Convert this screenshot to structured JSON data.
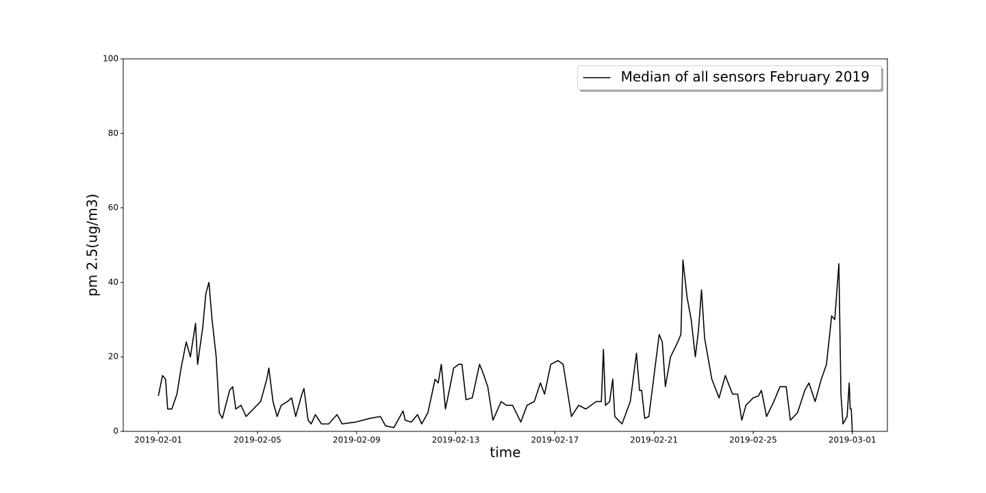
{
  "chart_data": {
    "type": "line",
    "x_label": "time",
    "y_label": "pm 2.5(ug/m3)",
    "legend": "upper right",
    "x": [
      "2019-02-01 00:00",
      "2019-02-01 04:00",
      "2019-02-01 07:00",
      "2019-02-01 09:00",
      "2019-02-01 13:00",
      "2019-02-01 18:00",
      "2019-02-01 22:00",
      "2019-02-02 03:00",
      "2019-02-02 07:00",
      "2019-02-02 12:00",
      "2019-02-02 14:00",
      "2019-02-02 19:00",
      "2019-02-02 22:00",
      "2019-02-03 01:00",
      "2019-02-03 04:00",
      "2019-02-03 08:00",
      "2019-02-03 11:00",
      "2019-02-03 14:00",
      "2019-02-03 21:00",
      "2019-02-04 00:00",
      "2019-02-04 03:00",
      "2019-02-04 08:00",
      "2019-02-04 13:00",
      "2019-02-04 20:00",
      "2019-02-05 03:00",
      "2019-02-05 09:00",
      "2019-02-05 11:00",
      "2019-02-05 15:00",
      "2019-02-05 19:00",
      "2019-02-05 23:00",
      "2019-02-06 05:00",
      "2019-02-06 09:00",
      "2019-02-06 13:00",
      "2019-02-06 19:00",
      "2019-02-06 21:00",
      "2019-02-07 01:00",
      "2019-02-07 04:00",
      "2019-02-07 08:00",
      "2019-02-07 14:00",
      "2019-02-07 21:00",
      "2019-02-08 05:00",
      "2019-02-08 10:00",
      "2019-02-08 23:00",
      "2019-02-09 13:00",
      "2019-02-09 23:00",
      "2019-02-10 04:00",
      "2019-02-10 12:00",
      "2019-02-10 21:00",
      "2019-02-10 23:00",
      "2019-02-11 05:00",
      "2019-02-11 11:00",
      "2019-02-11 15:00",
      "2019-02-11 21:00",
      "2019-02-12 04:00",
      "2019-02-12 07:00",
      "2019-02-12 10:00",
      "2019-02-12 14:00",
      "2019-02-12 17:00",
      "2019-02-12 22:00",
      "2019-02-13 03:00",
      "2019-02-13 06:00",
      "2019-02-13 10:00",
      "2019-02-13 16:00",
      "2019-02-13 23:00",
      "2019-02-14 02:00",
      "2019-02-14 07:00",
      "2019-02-14 12:00",
      "2019-02-14 20:00",
      "2019-02-15 01:00",
      "2019-02-15 07:00",
      "2019-02-15 15:00",
      "2019-02-15 21:00",
      "2019-02-16 04:00",
      "2019-02-16 10:00",
      "2019-02-16 14:00",
      "2019-02-16 20:00",
      "2019-02-17 03:00",
      "2019-02-17 08:00",
      "2019-02-17 16:00",
      "2019-02-17 23:00",
      "2019-02-18 06:00",
      "2019-02-18 16:00",
      "2019-02-18 21:00",
      "2019-02-18 23:00",
      "2019-02-19 01:00",
      "2019-02-19 05:00",
      "2019-02-19 08:00",
      "2019-02-19 10:00",
      "2019-02-19 17:00",
      "2019-02-20 01:00",
      "2019-02-20 07:00",
      "2019-02-20 10:00",
      "2019-02-20 12:00",
      "2019-02-20 15:00",
      "2019-02-20 19:00",
      "2019-02-21 00:00",
      "2019-02-21 05:00",
      "2019-02-21 08:00",
      "2019-02-21 11:00",
      "2019-02-21 16:00",
      "2019-02-21 23:00",
      "2019-02-22 02:00",
      "2019-02-22 04:00",
      "2019-02-22 08:00",
      "2019-02-22 12:00",
      "2019-02-22 16:00",
      "2019-02-22 19:00",
      "2019-02-22 22:00",
      "2019-02-23 01:00",
      "2019-02-23 08:00",
      "2019-02-23 15:00",
      "2019-02-23 21:00",
      "2019-02-24 04:00",
      "2019-02-24 09:00",
      "2019-02-24 13:00",
      "2019-02-24 17:00",
      "2019-02-25 00:00",
      "2019-02-25 05:00",
      "2019-02-25 08:00",
      "2019-02-25 13:00",
      "2019-02-25 20:00",
      "2019-02-26 02:00",
      "2019-02-26 08:00",
      "2019-02-26 12:00",
      "2019-02-26 19:00",
      "2019-02-27 02:00",
      "2019-02-27 06:00",
      "2019-02-27 12:00",
      "2019-02-27 18:00",
      "2019-02-27 23:00",
      "2019-02-28 04:00",
      "2019-02-28 07:00",
      "2019-02-28 11:00",
      "2019-02-28 13:00",
      "2019-02-28 15:00",
      "2019-02-28 19:00",
      "2019-02-28 21:00",
      "2019-02-28 22:00",
      "2019-02-28 23:00",
      "2019-03-01 00:00"
    ],
    "series": [
      {
        "name": "Median of all sensors February 2019",
        "color": "#000000",
        "values": [
          9.5,
          15,
          14,
          6,
          6,
          10,
          17,
          24,
          20,
          29,
          18,
          28,
          37,
          40,
          30,
          20,
          5,
          3.5,
          11,
          12,
          6,
          7,
          4,
          6,
          8,
          14,
          17,
          8,
          4,
          7,
          8,
          9,
          4,
          10,
          11.5,
          3,
          2,
          4.5,
          2,
          2,
          4.5,
          2,
          2.5,
          3.5,
          4,
          1.5,
          1,
          5.5,
          3,
          2.5,
          4.5,
          2,
          5,
          14,
          13,
          18,
          6,
          10,
          17,
          18,
          18,
          8.5,
          9,
          18,
          16,
          12,
          3,
          8,
          7,
          7,
          2.5,
          7,
          8,
          13,
          10,
          18,
          19,
          18,
          4,
          7,
          6,
          8,
          8,
          22,
          7,
          8,
          14,
          4,
          2,
          8,
          21,
          11,
          11,
          3.5,
          4,
          15,
          26,
          24,
          12,
          20,
          24,
          26,
          46,
          36,
          30,
          20,
          27,
          38,
          25,
          14,
          9,
          15,
          10,
          10,
          3,
          7,
          9,
          9.5,
          11,
          4,
          8,
          12,
          12,
          3,
          5,
          11,
          13,
          8,
          14,
          18,
          31,
          30,
          45,
          10,
          2,
          4,
          13,
          6,
          6,
          0
        ]
      }
    ],
    "xlim": [
      "2019-01-30 14:00",
      "2019-03-02 10:00"
    ],
    "xticks": [
      "2019-02-01",
      "2019-02-05",
      "2019-02-09",
      "2019-02-13",
      "2019-02-17",
      "2019-02-21",
      "2019-02-25",
      "2019-03-01"
    ],
    "ylim": [
      0,
      100
    ],
    "yticks": [
      0,
      20,
      40,
      60,
      80,
      100
    ]
  }
}
